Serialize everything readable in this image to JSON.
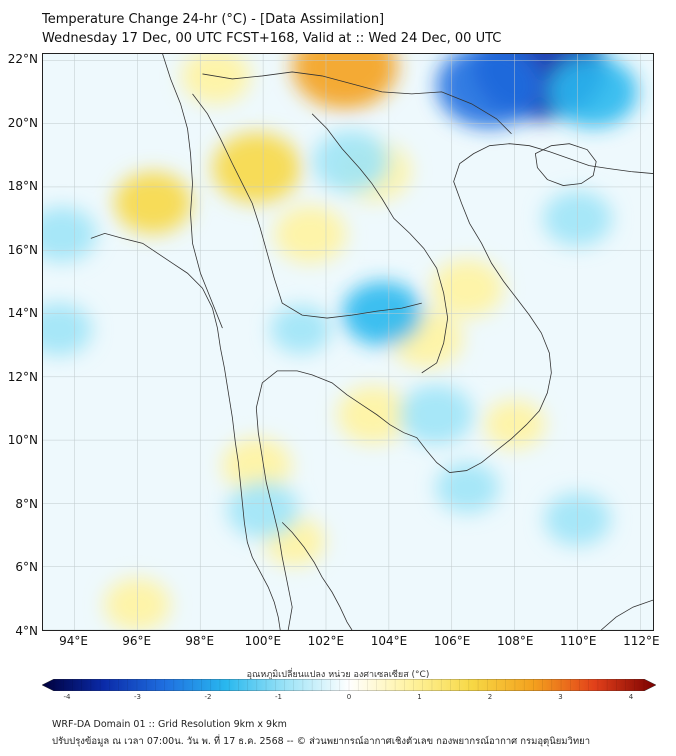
{
  "header": {
    "title": "Temperature Change 24-hr (°C) - [Data Assimilation]",
    "subtitle": "Wednesday 17 Dec, 00 UTC FCST+168, Valid at :: Wed 24 Dec, 00 UTC"
  },
  "axes": {
    "lat_labels": [
      "22°N",
      "20°N",
      "18°N",
      "16°N",
      "14°N",
      "12°N",
      "10°N",
      "8°N",
      "6°N",
      "4°N"
    ],
    "lat_values": [
      22,
      20,
      18,
      16,
      14,
      12,
      10,
      8,
      6,
      4
    ],
    "lon_labels": [
      "94°E",
      "96°E",
      "98°E",
      "100°E",
      "102°E",
      "104°E",
      "106°E",
      "108°E",
      "110°E",
      "112°E"
    ],
    "lon_values": [
      94,
      96,
      98,
      100,
      102,
      104,
      106,
      108,
      110,
      112
    ],
    "extent": {
      "lon_min": 93,
      "lon_max": 112.4,
      "lat_min": 4,
      "lat_max": 22.2
    }
  },
  "colorbar": {
    "title": "อุณหภูมิเปลี่ยนแปลง หน่วย องศาเซลเซียส (°C)",
    "ticks": [
      "-4",
      "-3",
      "-2",
      "-1",
      "0",
      "1",
      "2",
      "3",
      "4"
    ],
    "tick_values": [
      -4,
      -3,
      -2,
      -1,
      0,
      1,
      2,
      3,
      4
    ],
    "range": [
      -4,
      4
    ],
    "colors": [
      "#00003c",
      "#0a2aa8",
      "#1f6fe0",
      "#29b8ee",
      "#9fe4f7",
      "#ffffff",
      "#fff3a0",
      "#f7d845",
      "#f4a11e",
      "#e2401a",
      "#7a0000"
    ]
  },
  "fields": {
    "warm_spots": [
      {
        "lon": 102.6,
        "lat": 21.8,
        "value": 2.2
      },
      {
        "lon": 99.8,
        "lat": 18.6,
        "value": 1.6
      },
      {
        "lon": 103.5,
        "lat": 18.5,
        "value": 1.1
      },
      {
        "lon": 96.5,
        "lat": 17.5,
        "value": 1.2
      },
      {
        "lon": 101.5,
        "lat": 16.5,
        "value": 1.0
      },
      {
        "lon": 98.5,
        "lat": 21.5,
        "value": 0.9
      },
      {
        "lon": 105.2,
        "lat": 13.2,
        "value": 1.0
      },
      {
        "lon": 106.5,
        "lat": 14.8,
        "value": 1.0
      },
      {
        "lon": 103.5,
        "lat": 10.8,
        "value": 1.0
      },
      {
        "lon": 99.8,
        "lat": 9.2,
        "value": 0.9
      },
      {
        "lon": 96.0,
        "lat": 4.8,
        "value": 0.8
      },
      {
        "lon": 108.0,
        "lat": 10.5,
        "value": 0.6
      },
      {
        "lon": 101.0,
        "lat": 6.8,
        "value": 0.6
      }
    ],
    "cold_spots": [
      {
        "lon": 108.8,
        "lat": 21.8,
        "value": -3.2
      },
      {
        "lon": 107.2,
        "lat": 21.2,
        "value": -2.2
      },
      {
        "lon": 110.5,
        "lat": 21.0,
        "value": -1.6
      },
      {
        "lon": 103.8,
        "lat": 14.0,
        "value": -1.3
      },
      {
        "lon": 102.8,
        "lat": 18.8,
        "value": -1.2
      },
      {
        "lon": 105.5,
        "lat": 10.8,
        "value": -1.1
      },
      {
        "lon": 100.0,
        "lat": 7.8,
        "value": -1.0
      },
      {
        "lon": 110.0,
        "lat": 17.0,
        "value": -0.9
      },
      {
        "lon": 93.6,
        "lat": 16.5,
        "value": -0.9
      },
      {
        "lon": 93.5,
        "lat": 13.5,
        "value": -0.8
      },
      {
        "lon": 110.0,
        "lat": 7.5,
        "value": -0.8
      },
      {
        "lon": 106.5,
        "lat": 8.5,
        "value": -0.7
      },
      {
        "lon": 101.2,
        "lat": 13.5,
        "value": -0.6
      }
    ]
  },
  "footer": {
    "line1": "WRF-DA Domain 01 :: Grid Resolution 9km x 9km",
    "line2": "ปรับปรุงข้อมูล ณ เวลา 07:00น. วัน พ. ที่ 17 ธ.ค. 2568 -- © ส่วนพยากรณ์อากาศเชิงตัวเลข กองพยากรณ์อากาศ กรมอุตุนิยมวิทยา"
  }
}
